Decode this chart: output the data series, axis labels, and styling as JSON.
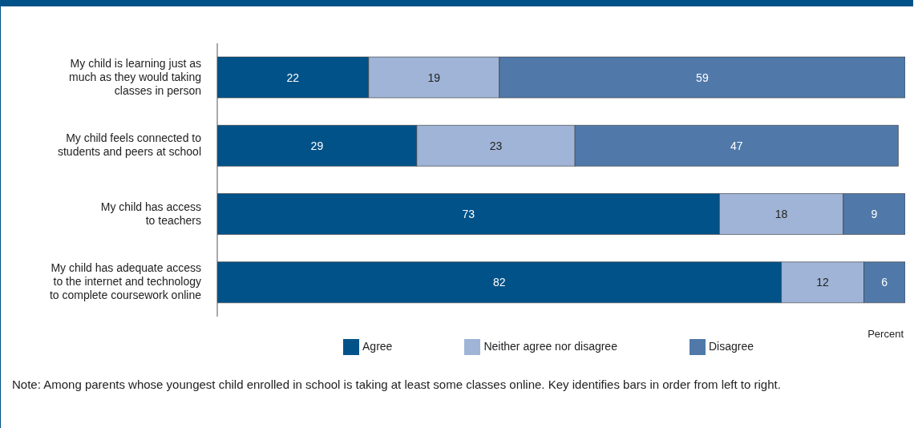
{
  "chart_data": {
    "type": "bar",
    "orientation": "horizontal",
    "stacked": true,
    "xlabel": "Percent",
    "categories": [
      "My child is learning just as\nmuch as they would taking\nclasses in person",
      "My child feels connected to\nstudents and peers at school",
      "My child has access\nto teachers",
      "My child has adequate access\nto the internet and technology\nto complete coursework online"
    ],
    "series": [
      {
        "name": "Agree",
        "color": "#005288",
        "values": [
          22,
          29,
          73,
          82
        ]
      },
      {
        "name": "Neither agree nor disagree",
        "color": "#9fb4d6",
        "values": [
          19,
          23,
          18,
          12
        ]
      },
      {
        "name": "Disagree",
        "color": "#5079a9",
        "values": [
          59,
          47,
          9,
          6
        ]
      }
    ],
    "xlim": [
      0,
      100
    ],
    "data_labels": true,
    "grid": false,
    "legend": "bottom",
    "tick_labels": "y",
    "annotations": [
      "Note: Among parents whose youngest child enrolled in school is taking at least some classes online. Key identifies bars in order from left to right."
    ]
  }
}
